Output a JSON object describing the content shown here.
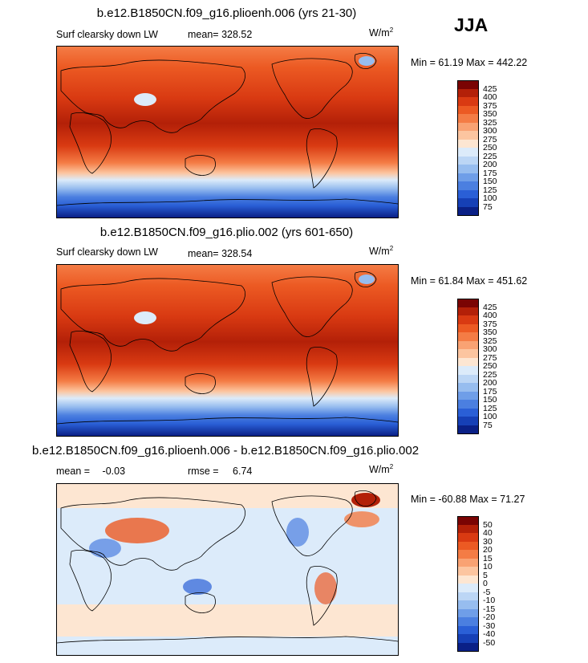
{
  "season": "JJA",
  "panels": [
    {
      "id": "top",
      "title": "b.e12.B1850CN.f09_g16.plioenh.006 (yrs 21-30)",
      "variable": "Surf clearsky down LW",
      "mean_label": "mean=",
      "mean_value": "328.52",
      "units": "W/m",
      "units_exp": "2",
      "minmax": "Min =  61.19 Max = 442.22",
      "colorbar": {
        "colors": [
          "#7a0403",
          "#b32008",
          "#d93a12",
          "#ec5a23",
          "#f47c45",
          "#f9a273",
          "#fcc5a0",
          "#fde6d2",
          "#dcebfa",
          "#bcd6f5",
          "#97bdef",
          "#6f9ee8",
          "#4b7fe0",
          "#2a5fd6",
          "#1640b6",
          "#0a2086"
        ],
        "labels": [
          "425",
          "400",
          "375",
          "350",
          "325",
          "300",
          "275",
          "250",
          "225",
          "200",
          "175",
          "150",
          "125",
          "100",
          "75"
        ]
      }
    },
    {
      "id": "middle",
      "title": "b.e12.B1850CN.f09_g16.plio.002 (yrs 601-650)",
      "variable": "Surf clearsky down LW",
      "mean_label": "mean=",
      "mean_value": "328.54",
      "units": "W/m",
      "units_exp": "2",
      "minmax": "Min =  61.84 Max = 451.62",
      "colorbar": {
        "colors": [
          "#7a0403",
          "#b32008",
          "#d93a12",
          "#ec5a23",
          "#f47c45",
          "#f9a273",
          "#fcc5a0",
          "#fde6d2",
          "#dcebfa",
          "#bcd6f5",
          "#97bdef",
          "#6f9ee8",
          "#4b7fe0",
          "#2a5fd6",
          "#1640b6",
          "#0a2086"
        ],
        "labels": [
          "425",
          "400",
          "375",
          "350",
          "325",
          "300",
          "275",
          "250",
          "225",
          "200",
          "175",
          "150",
          "125",
          "100",
          "75"
        ]
      }
    },
    {
      "id": "diff",
      "title": "b.e12.B1850CN.f09_g16.plioenh.006 - b.e12.B1850CN.f09_g16.plio.002",
      "mean_label": "mean =",
      "mean_value": "-0.03",
      "rmse_label": "rmse =",
      "rmse_value": "6.74",
      "units": "W/m",
      "units_exp": "2",
      "minmax": "Min = -60.88 Max =  71.27",
      "colorbar": {
        "colors": [
          "#7a0403",
          "#b32008",
          "#d93a12",
          "#ec5a23",
          "#f47c45",
          "#f9a273",
          "#fcc5a0",
          "#fde6d2",
          "#dcebfa",
          "#bcd6f5",
          "#97bdef",
          "#6f9ee8",
          "#4b7fe0",
          "#2a5fd6",
          "#1640b6",
          "#0a2086"
        ],
        "labels": [
          "50",
          "40",
          "30",
          "20",
          "15",
          "10",
          "5",
          "0",
          "-5",
          "-10",
          "-15",
          "-20",
          "-30",
          "-40",
          "-50"
        ]
      }
    }
  ]
}
